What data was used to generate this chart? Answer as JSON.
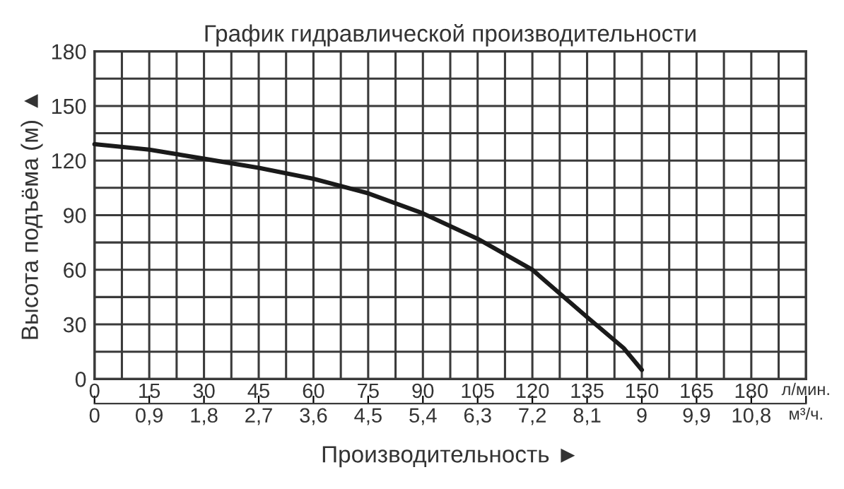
{
  "chart_data": {
    "type": "line",
    "title": "График гидравлической производительности",
    "xlabel": "Производительность ►",
    "ylabel": "Высота подъёма (м) ▲",
    "x": [
      0,
      15,
      30,
      45,
      60,
      75,
      90,
      105,
      120,
      135,
      145,
      150
    ],
    "series": [
      {
        "color": "#1a1a1a",
        "values": [
          129,
          126,
          121,
          116,
          110,
          102,
          91,
          77,
          60,
          34,
          17,
          5
        ]
      }
    ],
    "xlim": [
      0,
      195
    ],
    "ylim": [
      0,
      180
    ],
    "xticks": [
      0,
      {
        "value": 7.5,
        "label": null
      },
      15,
      {
        "value": 22.5,
        "label": null
      },
      30,
      {
        "value": 37.5,
        "label": null
      },
      45,
      {
        "value": 52.5,
        "label": null
      },
      60,
      {
        "value": 67.5,
        "label": null
      },
      75,
      {
        "value": 82.5,
        "label": null
      },
      90,
      {
        "value": 97.5,
        "label": null
      },
      105,
      {
        "value": 112.5,
        "label": null
      },
      120,
      {
        "value": 127.5,
        "label": null
      },
      135,
      {
        "value": 142.5,
        "label": null
      },
      150,
      {
        "value": 157.5,
        "label": null
      },
      165,
      {
        "value": 172.5,
        "label": null
      },
      180,
      {
        "value": 187.5,
        "label": null
      },
      {
        "value": 195,
        "label": "л/мин."
      }
    ],
    "yticks": [
      0,
      {
        "value": 15,
        "label": null
      },
      30,
      {
        "value": 45,
        "label": null
      },
      60,
      {
        "value": 75,
        "label": null
      },
      90,
      {
        "value": 105,
        "label": null
      },
      120,
      {
        "value": 135,
        "label": null
      },
      150,
      {
        "value": 165,
        "label": null
      },
      180
    ],
    "x2lim": [
      0,
      11.7
    ],
    "x2ticks": [
      0,
      {
        "value": 0.9,
        "label": "0,9"
      },
      {
        "value": 1.8,
        "label": "1,8"
      },
      {
        "value": 2.7,
        "label": "2,7"
      },
      {
        "value": 3.6,
        "label": "3,6"
      },
      {
        "value": 4.5,
        "label": "4,5"
      },
      {
        "value": 5.4,
        "label": "5,4"
      },
      {
        "value": 6.3,
        "label": "6,3"
      },
      {
        "value": 7.2,
        "label": "7,2"
      },
      {
        "value": 8.1,
        "label": "8,1"
      },
      9,
      {
        "value": 9.9,
        "label": "9,9"
      },
      {
        "value": 10.8,
        "label": "10,8"
      },
      {
        "value": 11.7,
        "label": "м³/ч."
      }
    ],
    "grid": true,
    "marker": "none",
    "line_style": "solid"
  }
}
